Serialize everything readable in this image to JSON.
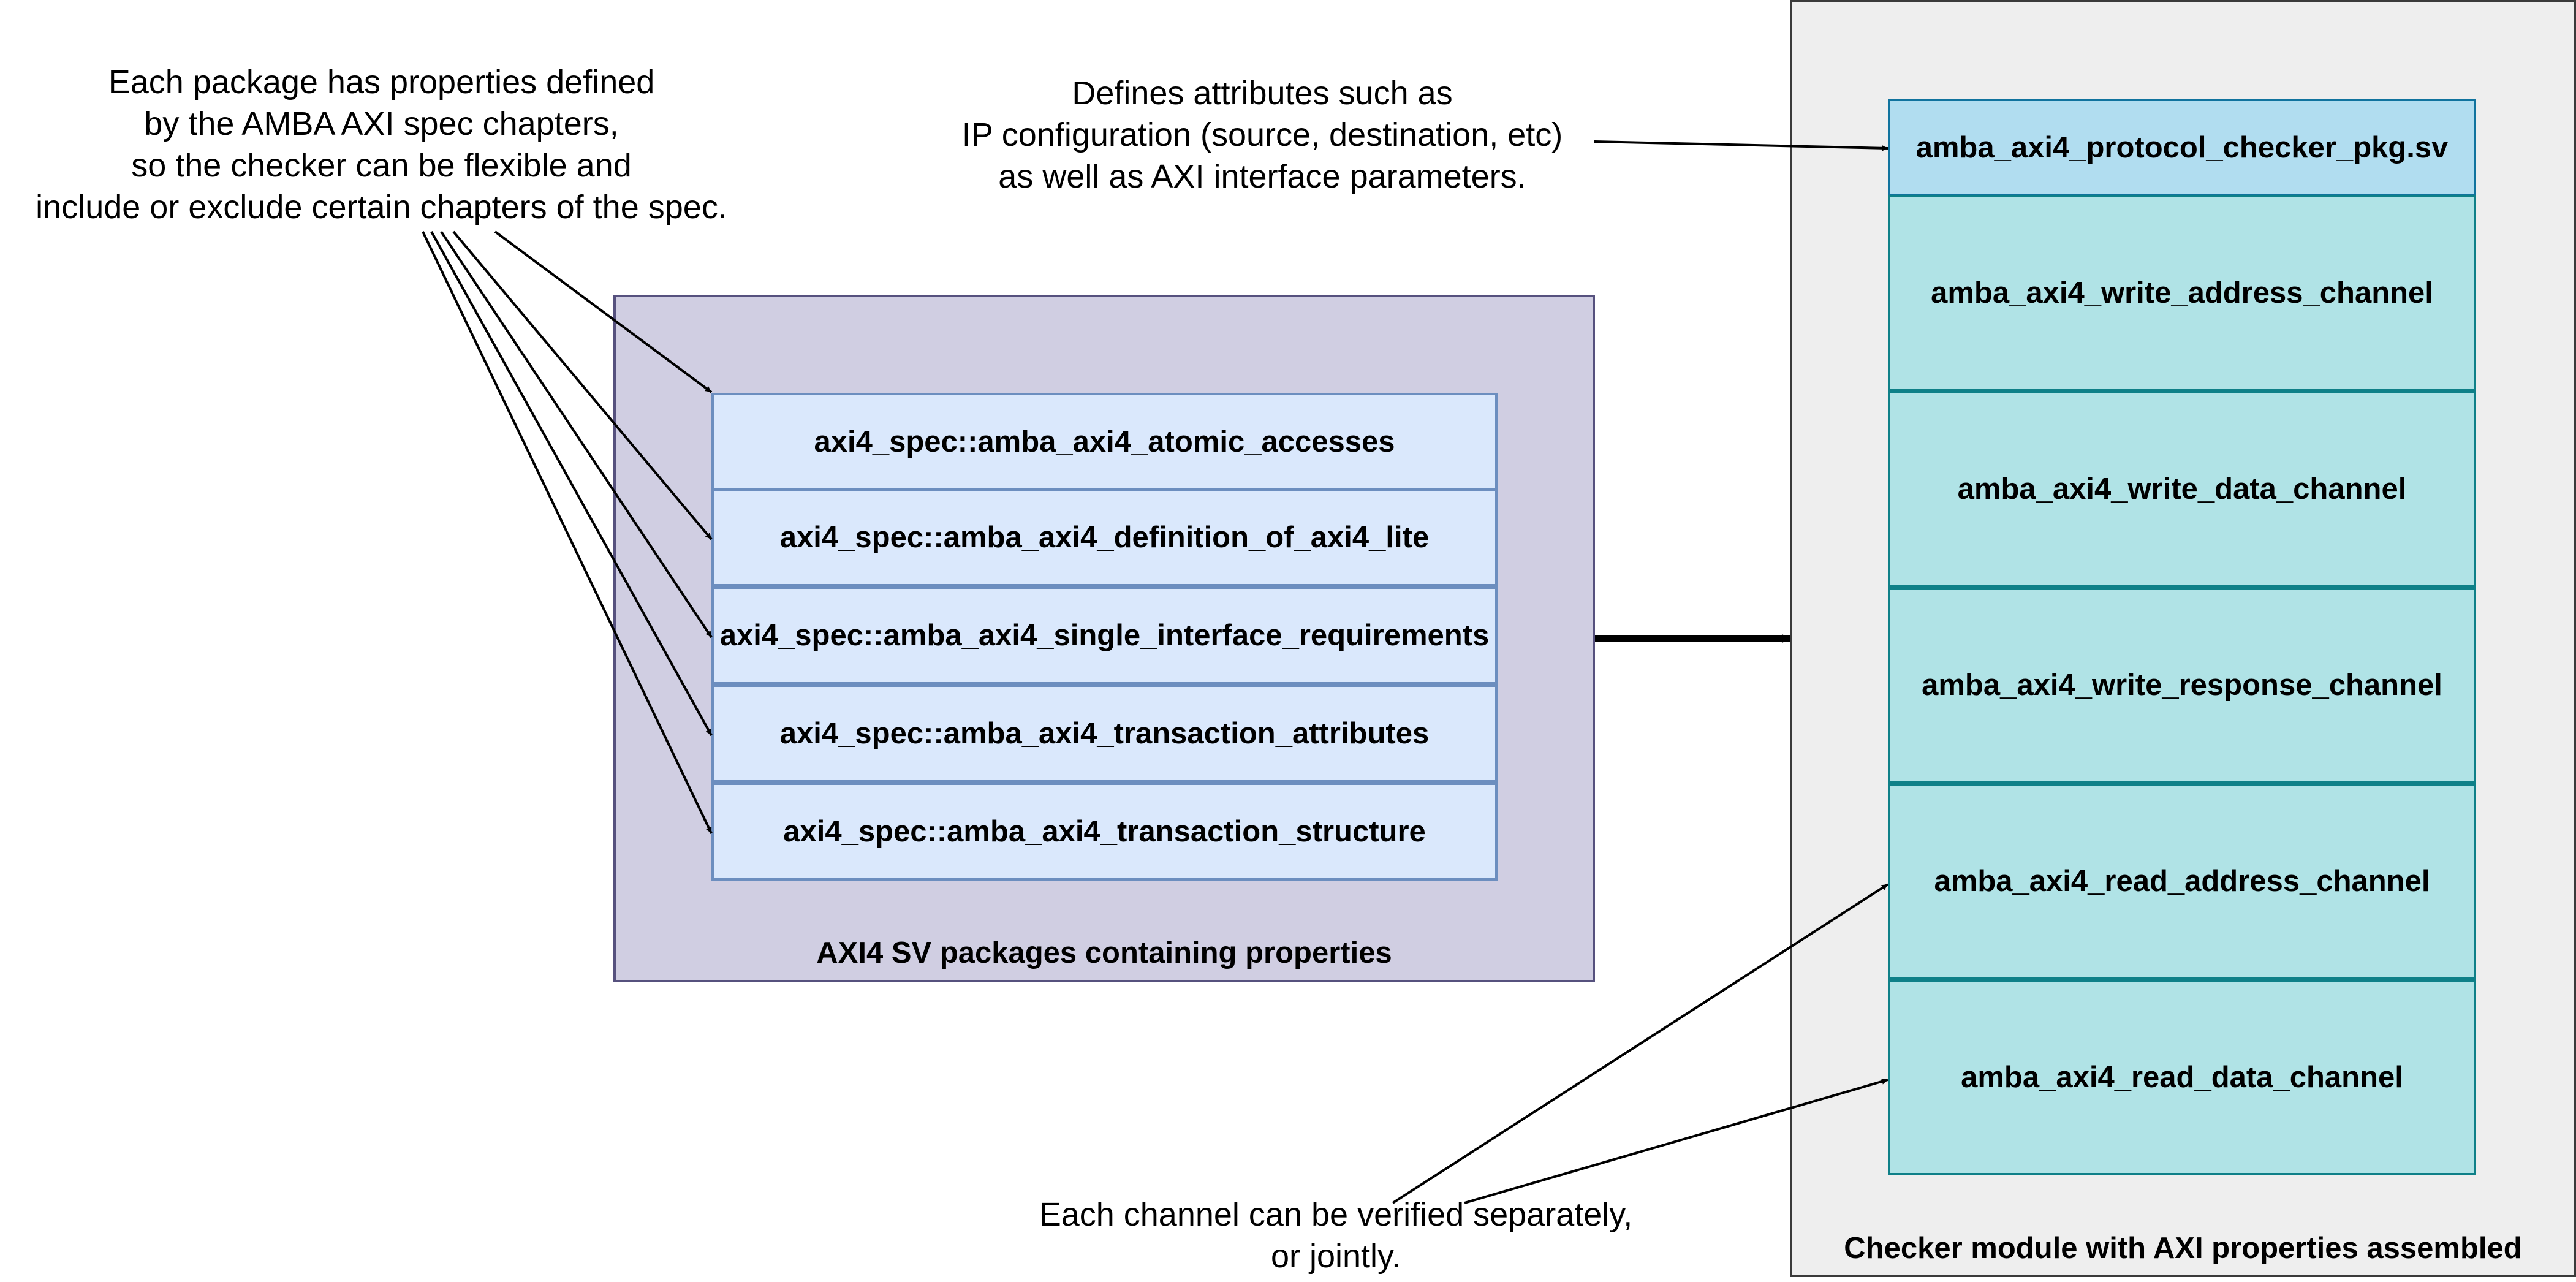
{
  "notes": {
    "packages_note": "Each package has properties defined\nby the AMBA AXI spec chapters,\nso the checker can be flexible and\ninclude or exclude certain chapters of the spec.",
    "attributes_note": "Defines attributes such as\nIP configuration (source, destination, etc)\nas well as AXI interface parameters.",
    "channels_note": "Each channel can be verified separately,\nor jointly."
  },
  "packages": {
    "title": "AXI4 SV packages containing properties",
    "items": [
      "axi4_spec::amba_axi4_atomic_accesses",
      "axi4_spec::amba_axi4_definition_of_axi4_lite",
      "axi4_spec::amba_axi4_single_interface_requirements",
      "axi4_spec::amba_axi4_transaction_attributes",
      "axi4_spec::amba_axi4_transaction_structure"
    ]
  },
  "checker": {
    "title": "Checker module with AXI properties assembled",
    "pkg_file": "amba_axi4_protocol_checker_pkg.sv",
    "channels": [
      "amba_axi4_write_address_channel",
      "amba_axi4_write_data_channel",
      "amba_axi4_write_response_channel",
      "amba_axi4_read_address_channel",
      "amba_axi4_read_data_channel"
    ]
  },
  "colors": {
    "checker_fill": "#eeeeee",
    "packages_fill": "#d0cee2",
    "package_row_fill": "#dae8fc",
    "channel_fill": "#b0e3e6",
    "pkg_file_fill": "#b1ddf0"
  }
}
